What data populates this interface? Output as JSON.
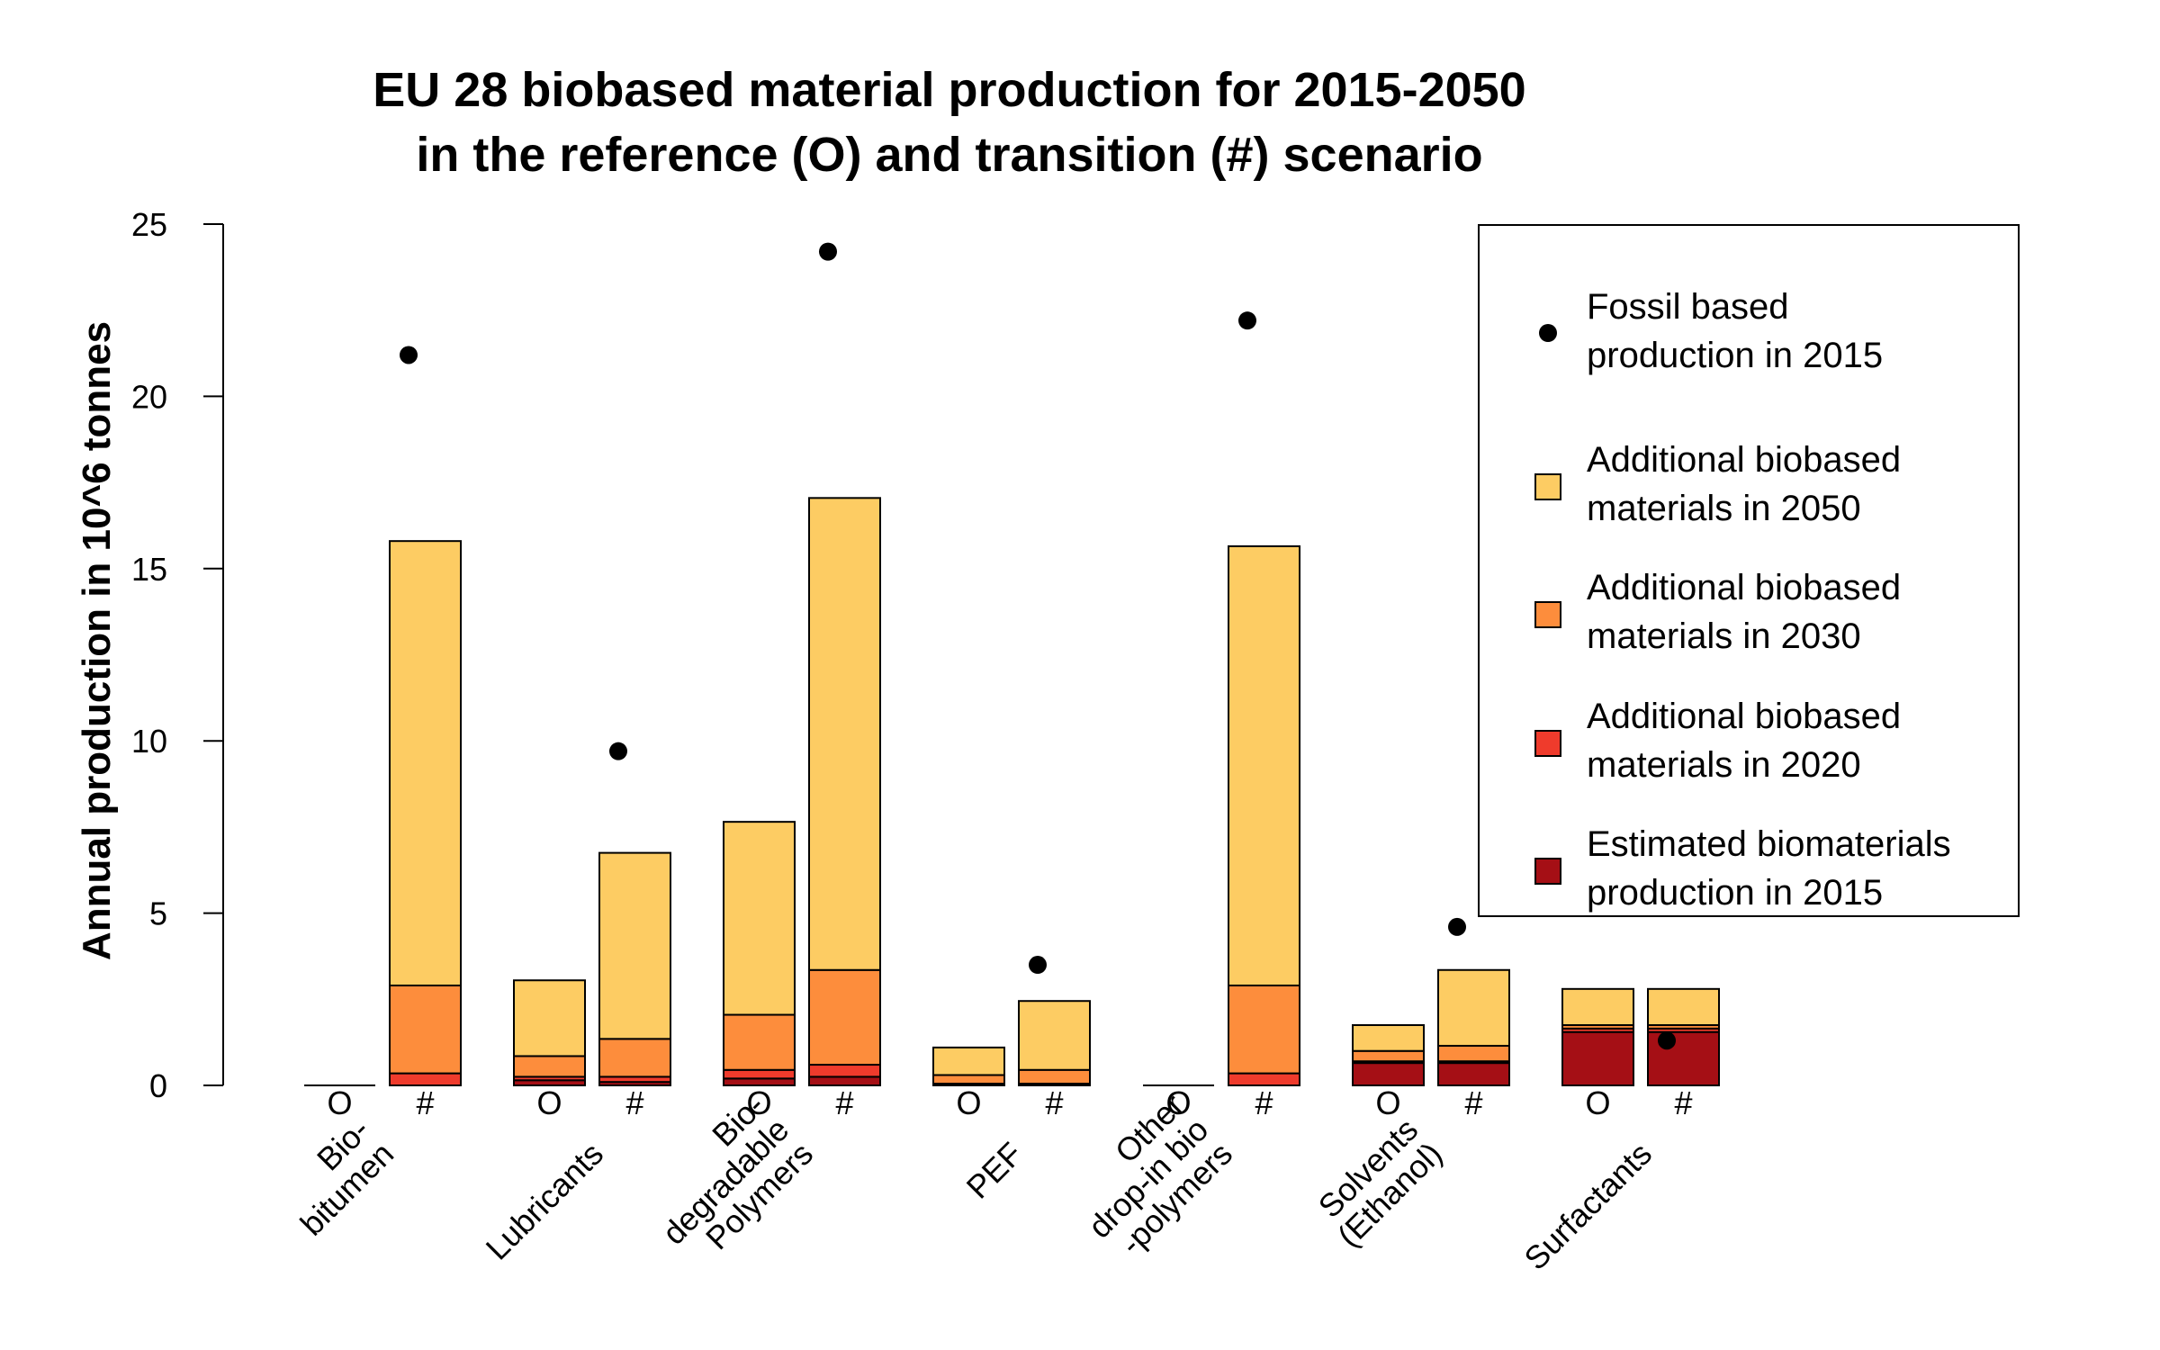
{
  "chart_data": {
    "type": "bar",
    "title": [
      "EU 28 biobased material production for 2015-2050",
      "in the reference (O) and transition (#) scenario"
    ],
    "ylabel": "Annual production in 10^6 tonnes",
    "ylim": [
      0,
      25
    ],
    "yticks": [
      "0",
      "5",
      "10",
      "15",
      "20",
      "25"
    ],
    "stacked": true,
    "scenarios": [
      "O",
      "#"
    ],
    "categories": [
      [
        "Bio-",
        "bitumen"
      ],
      [
        "Lubricants"
      ],
      [
        "Bio-",
        "degradable",
        "Polymers"
      ],
      [
        "PEF"
      ],
      [
        "Other",
        "drop-in bio",
        "-polymers"
      ],
      [
        "Solvents",
        "(Ethanol)"
      ],
      [
        "Surfactants"
      ]
    ],
    "series": [
      {
        "name": "Estimated biomaterials production in 2015",
        "color": "#a50f15",
        "values": [
          [
            0,
            0
          ],
          [
            0.15,
            0.1
          ],
          [
            0.2,
            0.25
          ],
          [
            0,
            0
          ],
          [
            0,
            0
          ],
          [
            0.65,
            0.65
          ],
          [
            1.55,
            1.55
          ]
        ]
      },
      {
        "name": "Additional biobased materials in 2020",
        "color": "#ef3b2c",
        "values": [
          [
            0,
            0.35
          ],
          [
            0.1,
            0.15
          ],
          [
            0.25,
            0.35
          ],
          [
            0.05,
            0.05
          ],
          [
            0,
            0.35
          ],
          [
            0.05,
            0.05
          ],
          [
            0.1,
            0.1
          ]
        ]
      },
      {
        "name": "Additional biobased materials in 2030",
        "color": "#fd8d3c",
        "values": [
          [
            0,
            2.55
          ],
          [
            0.6,
            1.1
          ],
          [
            1.6,
            2.75
          ],
          [
            0.25,
            0.4
          ],
          [
            0,
            2.55
          ],
          [
            0.3,
            0.45
          ],
          [
            0.1,
            0.1
          ]
        ]
      },
      {
        "name": "Additional biobased materials in 2050",
        "color": "#fdcc63",
        "values": [
          [
            0,
            12.9
          ],
          [
            2.2,
            5.4
          ],
          [
            5.6,
            13.7
          ],
          [
            0.8,
            2.0
          ],
          [
            0,
            12.75
          ],
          [
            0.75,
            2.2
          ],
          [
            1.05,
            1.05
          ]
        ]
      }
    ],
    "fossil": {
      "name": "Fossil based production in 2015",
      "color": "#000000",
      "values": [
        21.2,
        9.7,
        24.2,
        3.5,
        22.2,
        4.6,
        1.3
      ]
    },
    "legend": {
      "placement": "top-right",
      "entries": [
        {
          "lines": [
            "Fossil based",
            "production in 2015"
          ],
          "symbol": "point",
          "color": "#000000"
        },
        {
          "lines": [
            "Additional biobased",
            "materials in 2050"
          ],
          "symbol": "box",
          "color": "#fdcc63"
        },
        {
          "lines": [
            "Additional biobased",
            "materials in 2030"
          ],
          "symbol": "box",
          "color": "#fd8d3c"
        },
        {
          "lines": [
            "Additional biobased",
            "materials in 2020"
          ],
          "symbol": "box",
          "color": "#ef3b2c"
        },
        {
          "lines": [
            "Estimated biomaterials",
            "production in 2015"
          ],
          "symbol": "box",
          "color": "#a50f15"
        }
      ]
    },
    "grid": false
  }
}
